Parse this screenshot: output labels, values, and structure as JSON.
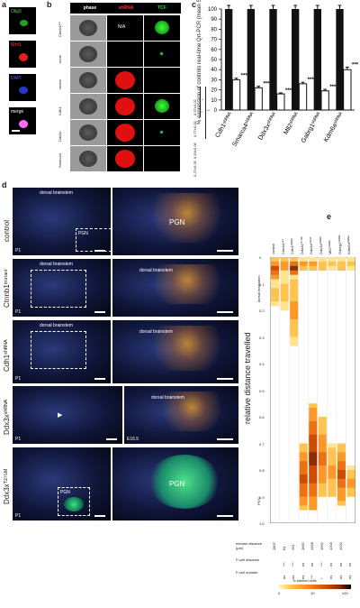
{
  "panel_letters": [
    "a",
    "b",
    "c",
    "d",
    "e"
  ],
  "panel_a": {
    "labels": [
      "Olig3",
      "Wnt1",
      "DAPI",
      "merge"
    ],
    "label_colors": [
      "#49d84a",
      "#ff3a3a",
      "#4b63ff",
      "#ffffff"
    ]
  },
  "panel_b": {
    "headers": [
      "phase",
      "shRNA",
      "TCF"
    ],
    "header_colors": [
      "#ffffff",
      "#ff3030",
      "#2bd62b"
    ],
    "rows": [
      "Ctnnb1ᵃᶜᵗ",
      "none",
      "vector",
      "Cdh1",
      "Ddx3x",
      "Smarca4"
    ],
    "na_text": "N/A",
    "side_values": [
      "0.37±0.02",
      "0.77±0.09",
      "0.15±0.06",
      "0.27±0.05"
    ],
    "stars": [
      "*",
      "**"
    ]
  },
  "chart_data": {
    "type": "bar",
    "categories": [
      "Cdh1ˢʰᴿᴺᴬ",
      "Smarca4ˢʰᴿᴺᴬ",
      "Ddx3xˢʰᴿᴺᴬ",
      "Mll2ˢʰᴿᴺᴬ",
      "Gabrg1ˢʰᴿᴺᴬ",
      "Kdm6aˢʰᴿᴺᴬ"
    ],
    "control_values": [
      100,
      100,
      100,
      100,
      100,
      100
    ],
    "values": [
      30,
      22,
      16,
      26,
      19,
      40
    ],
    "errors": [
      1.5,
      1.5,
      1,
      1.5,
      1.5,
      2.5
    ],
    "stars": [
      "***",
      "***",
      "***",
      "***",
      "***",
      "***"
    ],
    "ylabel": "% expression of controls real-time Qrt-PCR (mean SD)",
    "yticks": [
      0,
      10,
      20,
      30,
      40,
      50,
      60,
      70,
      80,
      90,
      100
    ],
    "ylim": [
      0,
      100
    ]
  },
  "panel_d": {
    "rows": [
      {
        "label": "control",
        "left_text": "dorsal brainstem",
        "box_text": "PGN",
        "right_text": "PGN",
        "stage": "P1"
      },
      {
        "label": "Ctnnb1ᵐᵘᵗᵃⁿᵗ",
        "left_text": "dorsal brainstem",
        "right_text": "dorsal brainstem",
        "stage": "P1"
      },
      {
        "label": "Cdh1ˢʰᴿᴺᴬ",
        "left_text": "dorsal brainstem",
        "right_text": "dorsal brainstem",
        "stage": "P1"
      },
      {
        "label": "Ddx3xˢʰᴿᴺᴬ",
        "right_text": "dorsal brainstem",
        "stage": "P1",
        "stage_right": "E16.5"
      },
      {
        "label": "Ddx3xᵀ²⁷⁵ᴹ",
        "box_text": "PGN",
        "right_text": "PGN",
        "stage": "P1"
      }
    ]
  },
  "panel_e": {
    "columns": [
      "control",
      "Ctnnb1ᵃᶜᵗ",
      "Cdh1ˢʰᴿᴺᴬ",
      "Ddx3xᵀ²⁷⁵ᴹ",
      "Ddx3xᴳ³²⁵ᴱ",
      "Ddx3xˢʰᴿᴺᴬ",
      "Mll2ˢʰᴿᴺᴬ",
      "Gabrg1ˢʰᴿᴺᴬ",
      "Kdm6aˢʰᴿᴺᴬ"
    ],
    "y_label": "relative distance travelled",
    "y_ticks": [
      "0",
      "0.1",
      "0.2",
      "0.3",
      "0.4",
      "0.5",
      "0.6",
      "0.7",
      "0.8",
      "0.9",
      "1.0"
    ],
    "region_top": "dorsal brainstem",
    "region_bottom": "PGN",
    "median_label": "median distance (μm)",
    "medians": [
      "1807",
      "84",
      "261",
      "1662",
      "1468",
      "1662",
      "1203",
      "1552",
      ""
    ],
    "pcell_distance_label": "P-cell distance",
    "pcell_number_label": "P-cell number",
    "pcell_distance": [
      "",
      "***",
      "***",
      "ns",
      "ns",
      "***",
      "ns",
      "ns",
      "ns"
    ],
    "pcell_number": [
      "",
      "ns",
      "ns",
      "ns",
      "***",
      "*",
      "ns",
      "ns",
      "ns"
    ],
    "legend_title": "% labeled cells",
    "legend_ticks": [
      "0",
      "10",
      "≥20"
    ]
  }
}
